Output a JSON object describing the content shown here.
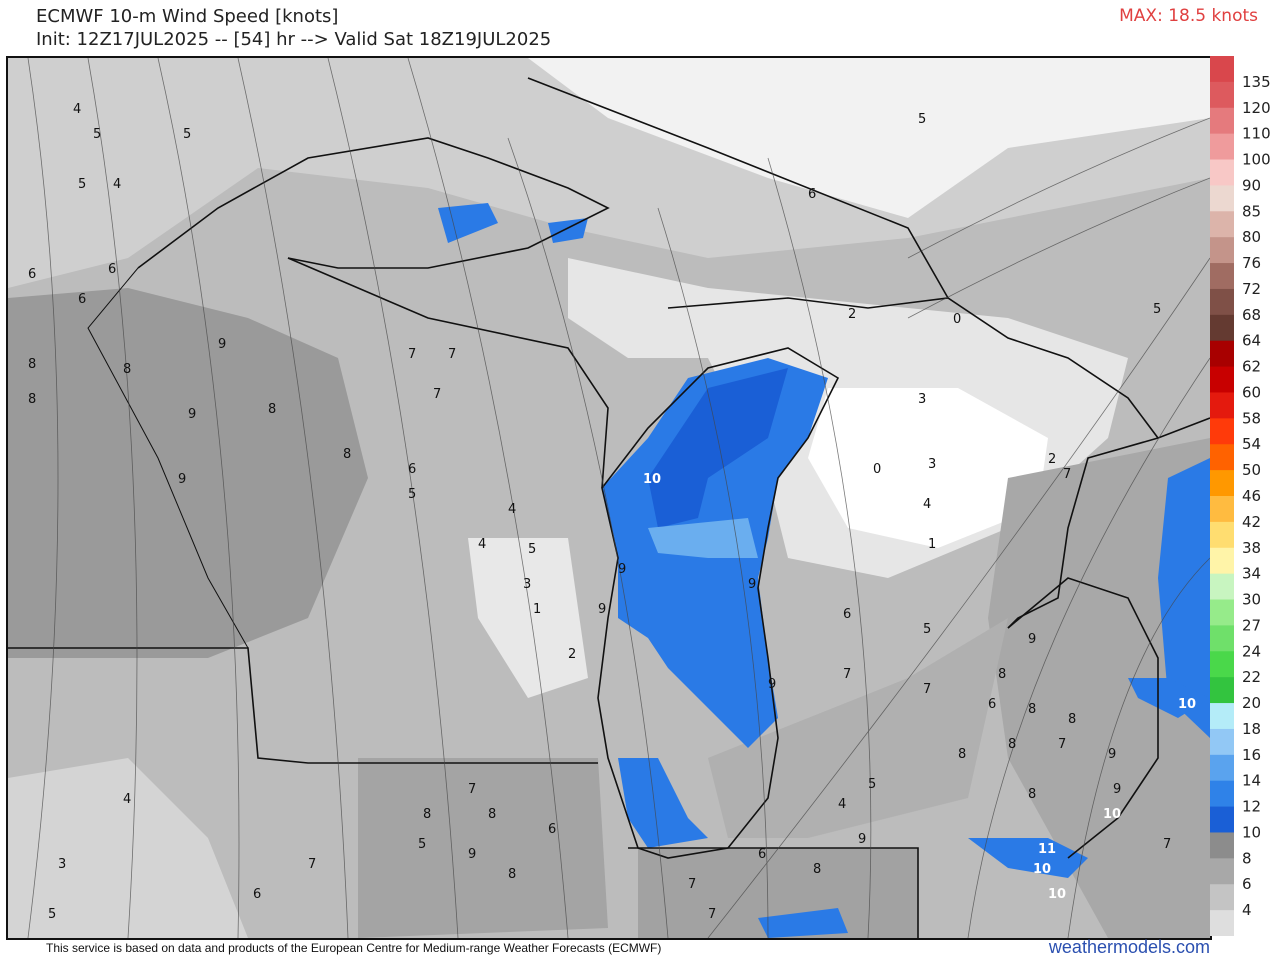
{
  "header": {
    "title": "ECMWF 10-m Wind Speed [knots]",
    "subtitle": "Init: 12Z17JUL2025 -- [54] hr --> Valid Sat 18Z19JUL2025",
    "max_label": "MAX: 18.5 knots"
  },
  "footer": {
    "attribution": "This service is based on data and products of the European Centre for Medium-range Weather Forecasts (ECMWF)",
    "brand": "weathermodels.com"
  },
  "colorbar": {
    "labels": [
      "135",
      "120",
      "110",
      "100",
      "90",
      "85",
      "80",
      "76",
      "72",
      "68",
      "64",
      "62",
      "60",
      "58",
      "54",
      "50",
      "46",
      "42",
      "38",
      "34",
      "30",
      "27",
      "24",
      "22",
      "20",
      "18",
      "16",
      "14",
      "12",
      "10",
      "8",
      "6",
      "4"
    ],
    "colors": [
      "#d9474c",
      "#dd5a5e",
      "#e57a7d",
      "#ef9b9c",
      "#f8c8c6",
      "#ecd8d0",
      "#dcb4aa",
      "#c4948a",
      "#a06c62",
      "#7f5047",
      "#643a31",
      "#a80000",
      "#c80000",
      "#e41a0e",
      "#ff3a0a",
      "#ff6200",
      "#ff9800",
      "#ffbb40",
      "#ffdd70",
      "#fff4a8",
      "#c8f5c0",
      "#96eb8a",
      "#6fe06a",
      "#4ad84a",
      "#33c43f",
      "#b4ecf8",
      "#92c8f5",
      "#5aa3ee",
      "#2f82e8",
      "#1a5fd6",
      "#8c8c8c",
      "#a8a8a8",
      "#c4c4c4",
      "#dedede"
    ]
  },
  "map": {
    "contour_labels": [
      "4",
      "5",
      "5",
      "5",
      "4",
      "6",
      "6",
      "6",
      "8",
      "8",
      "8",
      "9",
      "9",
      "9",
      "8",
      "8",
      "7",
      "7",
      "7",
      "6",
      "5",
      "4",
      "4",
      "5",
      "3",
      "1",
      "2",
      "10",
      "9",
      "9",
      "9",
      "9",
      "6",
      "5",
      "7",
      "7",
      "9",
      "6",
      "8",
      "7",
      "9",
      "8",
      "8",
      "3",
      "0",
      "3",
      "4",
      "1",
      "2",
      "2",
      "0",
      "5",
      "5",
      "6",
      "7",
      "5",
      "4",
      "10",
      "10",
      "10",
      "11",
      "10",
      "7",
      "8",
      "9",
      "8",
      "7",
      "6",
      "5",
      "3",
      "4",
      "5",
      "6",
      "7",
      "8",
      "8",
      "9",
      "8",
      "7",
      "6",
      "7",
      "8",
      "9",
      "8"
    ]
  }
}
